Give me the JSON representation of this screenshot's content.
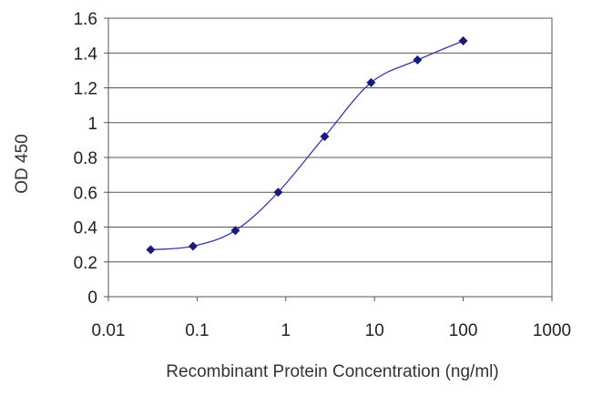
{
  "chart_data": {
    "type": "line",
    "xlabel": "Recombinant Protein Concentration (ng/ml)",
    "ylabel": "OD 450",
    "x_scale": "log",
    "xlim": [
      0.01,
      1000
    ],
    "ylim": [
      0,
      1.6
    ],
    "x_ticks": [
      "0.01",
      "0.1",
      "1",
      "10",
      "100",
      "1000"
    ],
    "y_ticks": [
      "0",
      "0.2",
      "0.4",
      "0.6",
      "0.8",
      "1",
      "1.2",
      "1.4",
      "1.6"
    ],
    "grid": "horizontal",
    "legend": "none",
    "series": [
      {
        "x": [
          0.03,
          0.09,
          0.27,
          0.82,
          2.74,
          9.14,
          30.5,
          100
        ],
        "y": [
          0.27,
          0.29,
          0.38,
          0.6,
          0.92,
          1.23,
          1.36,
          1.47
        ],
        "color": "#3a3aa0",
        "marker_color": "#1a1a7a"
      }
    ]
  }
}
